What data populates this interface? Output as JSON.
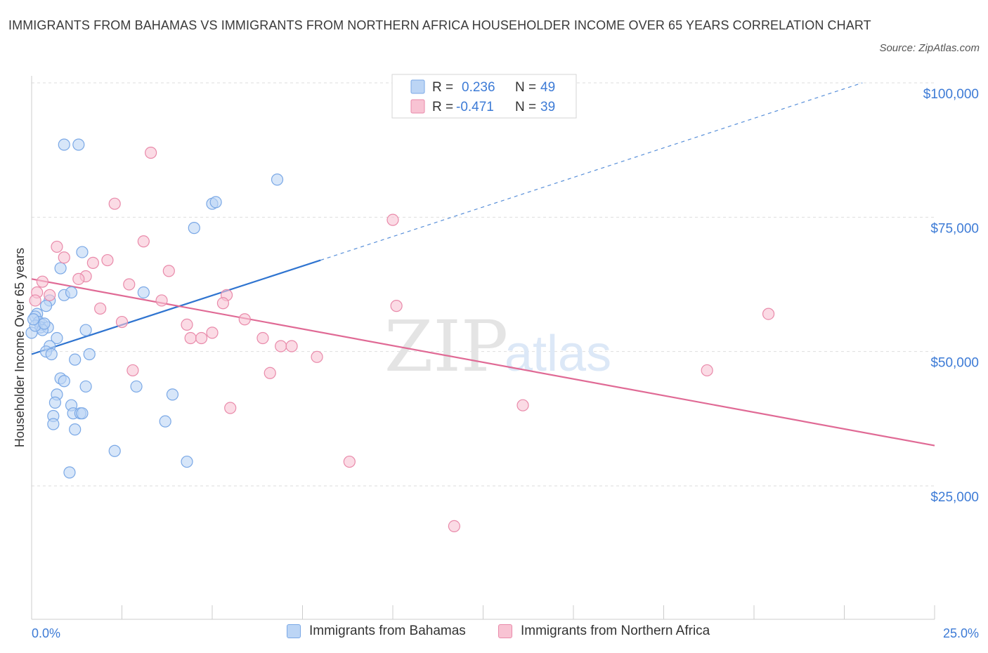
{
  "title": "IMMIGRANTS FROM BAHAMAS VS IMMIGRANTS FROM NORTHERN AFRICA HOUSEHOLDER INCOME OVER 65 YEARS CORRELATION CHART",
  "source": "Source: ZipAtlas.com",
  "watermark": {
    "zip": "ZIP",
    "atlas": "atlas"
  },
  "colors": {
    "blue_fill": "#bcd5f5",
    "blue_stroke": "#7aa8e6",
    "blue_line": "#2f74d0",
    "pink_fill": "#f8c3d3",
    "pink_stroke": "#e98aaa",
    "pink_line": "#e06a95",
    "axis_label": "#3d7bd6",
    "grid": "#dedede"
  },
  "chart_data": {
    "type": "scatter",
    "ylabel": "Householder Income Over 65 years",
    "xlim": [
      0,
      25
    ],
    "ylim": [
      0,
      100000
    ],
    "y_ticks": [
      {
        "value": 100000,
        "label": "$100,000"
      },
      {
        "value": 75000,
        "label": "$75,000"
      },
      {
        "value": 50000,
        "label": "$50,000"
      },
      {
        "value": 25000,
        "label": "$25,000"
      }
    ],
    "x_tick_labels": {
      "left": "0.0%",
      "right": "25.0%"
    },
    "legend": {
      "rows": [
        {
          "r_label": "R =",
          "r_value": "0.236",
          "n_label": "N =",
          "n_value": "49"
        },
        {
          "r_label": "R =",
          "r_value": "-0.471",
          "n_label": "N =",
          "n_value": "39"
        }
      ]
    },
    "series": [
      {
        "name": "Immigrants from Bahamas",
        "color": "blue",
        "trend": {
          "x0": 0,
          "y0": 49500,
          "x1": 8,
          "y1": 67000,
          "dash_x1": 23,
          "dash_y1": 100000
        },
        "points": [
          [
            0.9,
            88500
          ],
          [
            1.3,
            88500
          ],
          [
            6.8,
            82000
          ],
          [
            5,
            77500
          ],
          [
            5.1,
            77800
          ],
          [
            4.5,
            73000
          ],
          [
            1.4,
            68500
          ],
          [
            0.8,
            65500
          ],
          [
            3.1,
            61000
          ],
          [
            0.9,
            60500
          ],
          [
            1.1,
            61000
          ],
          [
            0.5,
            59500
          ],
          [
            0.4,
            58500
          ],
          [
            0.15,
            57000
          ],
          [
            0.1,
            56500
          ],
          [
            0.2,
            55500
          ],
          [
            0.3,
            55000
          ],
          [
            0.25,
            54500
          ],
          [
            0.45,
            54500
          ],
          [
            0.3,
            54000
          ],
          [
            1.5,
            54000
          ],
          [
            0.7,
            52500
          ],
          [
            0.5,
            51000
          ],
          [
            0.4,
            50000
          ],
          [
            0.55,
            49500
          ],
          [
            1.6,
            49500
          ],
          [
            1.2,
            48500
          ],
          [
            0.8,
            45000
          ],
          [
            0.9,
            44500
          ],
          [
            1.5,
            43500
          ],
          [
            2.9,
            43500
          ],
          [
            0.7,
            42000
          ],
          [
            3.9,
            42000
          ],
          [
            0.65,
            40500
          ],
          [
            1.1,
            40000
          ],
          [
            1.15,
            38500
          ],
          [
            1.35,
            38500
          ],
          [
            1.4,
            38500
          ],
          [
            0.6,
            38000
          ],
          [
            3.7,
            37000
          ],
          [
            0.6,
            36500
          ],
          [
            1.2,
            35500
          ],
          [
            2.3,
            31500
          ],
          [
            4.3,
            29500
          ],
          [
            1.05,
            27500
          ],
          [
            0,
            53500
          ],
          [
            0.1,
            54800
          ],
          [
            0.05,
            56000
          ],
          [
            0.35,
            55200
          ]
        ]
      },
      {
        "name": "Immigrants from Northern Africa",
        "color": "pink",
        "trend": {
          "x0": 0,
          "y0": 63500,
          "x1": 25,
          "y1": 32500
        },
        "points": [
          [
            3.3,
            87000
          ],
          [
            2.3,
            77500
          ],
          [
            10,
            74500
          ],
          [
            3.1,
            70500
          ],
          [
            0.7,
            69500
          ],
          [
            0.9,
            67500
          ],
          [
            2.1,
            67000
          ],
          [
            1.7,
            66500
          ],
          [
            3.8,
            65000
          ],
          [
            1.5,
            64000
          ],
          [
            0.3,
            63000
          ],
          [
            1.3,
            63500
          ],
          [
            2.7,
            62500
          ],
          [
            0.5,
            60500
          ],
          [
            5.4,
            60500
          ],
          [
            3.6,
            59500
          ],
          [
            5.3,
            59000
          ],
          [
            10.1,
            58500
          ],
          [
            1.9,
            58000
          ],
          [
            0.15,
            61000
          ],
          [
            20.4,
            57000
          ],
          [
            5.9,
            56000
          ],
          [
            2.5,
            55500
          ],
          [
            4.3,
            55000
          ],
          [
            5,
            53500
          ],
          [
            4.4,
            52500
          ],
          [
            4.7,
            52500
          ],
          [
            6.4,
            52500
          ],
          [
            6.9,
            51000
          ],
          [
            7.2,
            51000
          ],
          [
            7.9,
            49000
          ],
          [
            2.8,
            46500
          ],
          [
            6.6,
            46000
          ],
          [
            18.7,
            46500
          ],
          [
            13.6,
            40000
          ],
          [
            5.5,
            39500
          ],
          [
            8.8,
            29500
          ],
          [
            11.7,
            17500
          ],
          [
            0.1,
            59500
          ]
        ]
      }
    ]
  }
}
